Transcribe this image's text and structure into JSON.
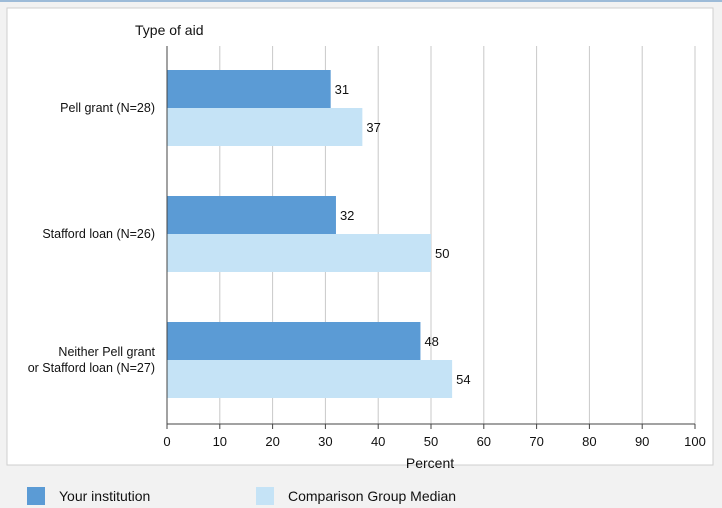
{
  "chart_data": {
    "type": "bar",
    "orientation": "horizontal",
    "y_axis_title": "Type of aid",
    "xlabel": "Percent",
    "categories": [
      [
        "Pell grant  (N=28)"
      ],
      [
        "Stafford loan (N=26)"
      ],
      [
        "Neither Pell grant",
        "or Stafford loan (N=27)"
      ]
    ],
    "series": [
      {
        "name": "Your institution",
        "values": [
          31,
          32,
          48
        ],
        "color": "#5b9bd5"
      },
      {
        "name": "Comparison Group Median",
        "values": [
          37,
          50,
          54
        ],
        "color": "#c5e3f6"
      }
    ],
    "xlim": [
      0,
      100
    ],
    "xticks": [
      0,
      10,
      20,
      30,
      40,
      50,
      60,
      70,
      80,
      90,
      100
    ],
    "grid": true,
    "legend_position": "bottom"
  }
}
